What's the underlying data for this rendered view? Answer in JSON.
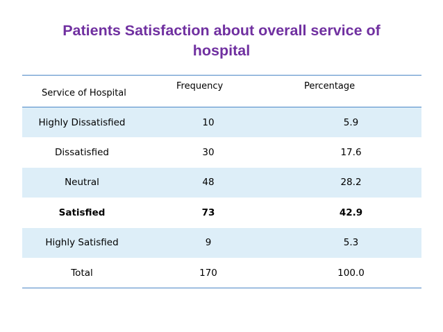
{
  "slide": {
    "title_line1": "Patients Satisfaction about overall service of",
    "title_line2": "hospital"
  },
  "table": {
    "headers": {
      "service": "Service of Hospital",
      "frequency": "Frequency",
      "percentage": "Percentage"
    },
    "rows": [
      {
        "service": "Highly Dissatisfied",
        "frequency": "10",
        "percentage": "5.9"
      },
      {
        "service": "Dissatisfied",
        "frequency": "30",
        "percentage": "17.6"
      },
      {
        "service": "Neutral",
        "frequency": "48",
        "percentage": "28.2"
      },
      {
        "service": "Satisfied",
        "frequency": "73",
        "percentage": "42.9"
      },
      {
        "service": "Highly Satisfied",
        "frequency": "9",
        "percentage": "5.3"
      },
      {
        "service": "Total",
        "frequency": "170",
        "percentage": "100.0"
      }
    ]
  },
  "colors": {
    "title": "#7030a0",
    "rule": "#4a86c5",
    "row_shading": "#ddeef8"
  }
}
